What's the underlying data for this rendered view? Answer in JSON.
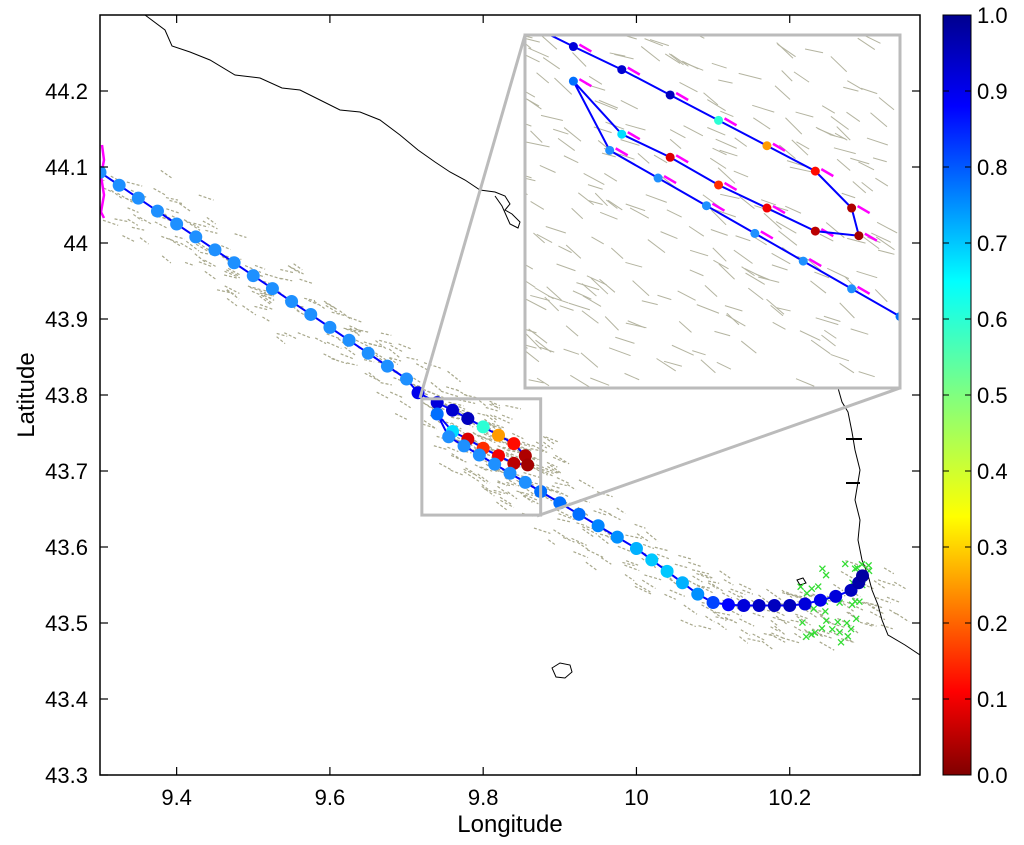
{
  "chart_data": {
    "type": "scatter",
    "title": "",
    "xlabel": "Longitude",
    "ylabel": "Latitude",
    "xlim": [
      9.3,
      10.37
    ],
    "ylim": [
      43.3,
      44.3
    ],
    "xticks": [
      9.4,
      9.6,
      9.8,
      10,
      10.2
    ],
    "xtick_labels": [
      "9.4",
      "9.6",
      "9.8",
      "10",
      "10.2"
    ],
    "yticks": [
      43.3,
      43.4,
      43.5,
      43.6,
      43.7,
      43.8,
      43.9,
      44.0,
      44.1,
      44.2
    ],
    "ytick_labels": [
      "43.3",
      "43.4",
      "43.5",
      "43.6",
      "43.7",
      "43.8",
      "43.9",
      "44",
      "44.1",
      "44.2"
    ],
    "grid": false,
    "colorbar": {
      "min": 0.0,
      "max": 1.0,
      "ticks": [
        0.0,
        0.1,
        0.2,
        0.3,
        0.4,
        0.5,
        0.6,
        0.7,
        0.8,
        0.9,
        1.0
      ],
      "tick_labels": [
        "0.0",
        "0.1",
        "0.2",
        "0.3",
        "0.4",
        "0.5",
        "0.6",
        "0.7",
        "0.8",
        "0.9",
        "1.0"
      ],
      "colormap": "jet",
      "orientation": "vertical"
    },
    "zoom_box": {
      "x": [
        9.72,
        9.875
      ],
      "y": [
        43.642,
        43.795
      ]
    },
    "trajectory": [
      {
        "lon": 9.3,
        "lat": 44.093,
        "v": 0.8
      },
      {
        "lon": 9.325,
        "lat": 44.076,
        "v": 0.8
      },
      {
        "lon": 9.35,
        "lat": 44.059,
        "v": 0.8
      },
      {
        "lon": 9.375,
        "lat": 44.042,
        "v": 0.8
      },
      {
        "lon": 9.4,
        "lat": 44.025,
        "v": 0.8
      },
      {
        "lon": 9.425,
        "lat": 44.008,
        "v": 0.8
      },
      {
        "lon": 9.45,
        "lat": 43.991,
        "v": 0.8
      },
      {
        "lon": 9.475,
        "lat": 43.974,
        "v": 0.8
      },
      {
        "lon": 9.5,
        "lat": 43.957,
        "v": 0.8
      },
      {
        "lon": 9.525,
        "lat": 43.94,
        "v": 0.8
      },
      {
        "lon": 9.55,
        "lat": 43.923,
        "v": 0.8
      },
      {
        "lon": 9.575,
        "lat": 43.906,
        "v": 0.8
      },
      {
        "lon": 9.6,
        "lat": 43.889,
        "v": 0.8
      },
      {
        "lon": 9.625,
        "lat": 43.872,
        "v": 0.8
      },
      {
        "lon": 9.65,
        "lat": 43.855,
        "v": 0.8
      },
      {
        "lon": 9.675,
        "lat": 43.838,
        "v": 0.8
      },
      {
        "lon": 9.7,
        "lat": 43.821,
        "v": 0.8
      },
      {
        "lon": 9.715,
        "lat": 43.803,
        "v": 0.9
      },
      {
        "lon": 9.74,
        "lat": 43.79,
        "v": 0.92
      },
      {
        "lon": 9.76,
        "lat": 43.78,
        "v": 0.93
      },
      {
        "lon": 9.78,
        "lat": 43.769,
        "v": 0.95
      },
      {
        "lon": 9.8,
        "lat": 43.758,
        "v": 0.6
      },
      {
        "lon": 9.82,
        "lat": 43.747,
        "v": 0.25
      },
      {
        "lon": 9.84,
        "lat": 43.736,
        "v": 0.12
      },
      {
        "lon": 9.855,
        "lat": 43.72,
        "v": 0.04
      },
      {
        "lon": 9.858,
        "lat": 43.708,
        "v": 0.03
      },
      {
        "lon": 9.84,
        "lat": 43.71,
        "v": 0.05
      },
      {
        "lon": 9.82,
        "lat": 43.72,
        "v": 0.1
      },
      {
        "lon": 9.8,
        "lat": 43.73,
        "v": 0.15
      },
      {
        "lon": 9.78,
        "lat": 43.742,
        "v": 0.08
      },
      {
        "lon": 9.76,
        "lat": 43.752,
        "v": 0.68
      },
      {
        "lon": 9.74,
        "lat": 43.775,
        "v": 0.78
      },
      {
        "lon": 9.755,
        "lat": 43.745,
        "v": 0.8
      },
      {
        "lon": 9.775,
        "lat": 43.733,
        "v": 0.8
      },
      {
        "lon": 9.795,
        "lat": 43.721,
        "v": 0.8
      },
      {
        "lon": 9.815,
        "lat": 43.709,
        "v": 0.8
      },
      {
        "lon": 9.835,
        "lat": 43.697,
        "v": 0.8
      },
      {
        "lon": 9.855,
        "lat": 43.685,
        "v": 0.8
      },
      {
        "lon": 9.875,
        "lat": 43.673,
        "v": 0.78
      },
      {
        "lon": 9.9,
        "lat": 43.658,
        "v": 0.78
      },
      {
        "lon": 9.925,
        "lat": 43.643,
        "v": 0.78
      },
      {
        "lon": 9.95,
        "lat": 43.628,
        "v": 0.76
      },
      {
        "lon": 9.975,
        "lat": 43.613,
        "v": 0.75
      },
      {
        "lon": 10.0,
        "lat": 43.598,
        "v": 0.72
      },
      {
        "lon": 10.02,
        "lat": 43.583,
        "v": 0.7
      },
      {
        "lon": 10.04,
        "lat": 43.568,
        "v": 0.7
      },
      {
        "lon": 10.06,
        "lat": 43.553,
        "v": 0.72
      },
      {
        "lon": 10.08,
        "lat": 43.538,
        "v": 0.75
      },
      {
        "lon": 10.1,
        "lat": 43.527,
        "v": 0.82
      },
      {
        "lon": 10.12,
        "lat": 43.524,
        "v": 0.88
      },
      {
        "lon": 10.14,
        "lat": 43.523,
        "v": 0.92
      },
      {
        "lon": 10.16,
        "lat": 43.523,
        "v": 0.94
      },
      {
        "lon": 10.18,
        "lat": 43.523,
        "v": 0.95
      },
      {
        "lon": 10.2,
        "lat": 43.523,
        "v": 0.95
      },
      {
        "lon": 10.22,
        "lat": 43.525,
        "v": 0.92
      },
      {
        "lon": 10.24,
        "lat": 43.53,
        "v": 0.9
      },
      {
        "lon": 10.26,
        "lat": 43.535,
        "v": 0.92
      },
      {
        "lon": 10.28,
        "lat": 43.543,
        "v": 0.95
      },
      {
        "lon": 10.29,
        "lat": 43.553,
        "v": 0.97
      },
      {
        "lon": 10.295,
        "lat": 43.562,
        "v": 0.98
      }
    ]
  }
}
